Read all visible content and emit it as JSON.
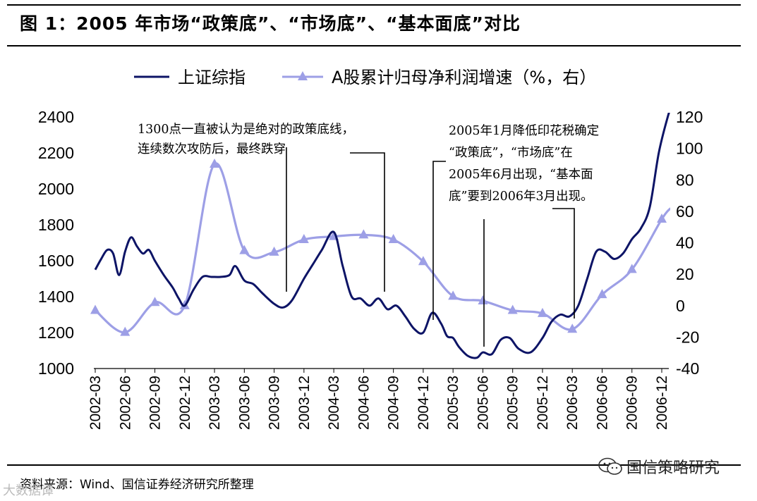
{
  "figure_title": "图 1：2005 年市场“政策底”、“市场底”、“基本面底”对比",
  "source": "资料来源：Wind、国信证券经济研究所整理",
  "watermark": "国信策略研究",
  "watermark2": "大数据谭",
  "colors": {
    "index_line": "#0d1466",
    "profit_line": "#9d9fe6"
  },
  "chart_data": {
    "type": "line",
    "title": "2005 年市场“政策底”、“市场底”、“基本面底”对比",
    "x_ticks": [
      "2002-03",
      "2002-06",
      "2002-09",
      "2002-12",
      "2003-03",
      "2003-06",
      "2003-09",
      "2003-12",
      "2004-03",
      "2004-06",
      "2004-09",
      "2004-12",
      "2005-03",
      "2005-06",
      "2005-09",
      "2005-12",
      "2006-03",
      "2006-06",
      "2006-09",
      "2006-12"
    ],
    "y_left": {
      "min": 1000,
      "max": 2400,
      "ticks": [
        1000,
        1200,
        1400,
        1600,
        1800,
        2000,
        2200,
        2400
      ]
    },
    "y_right": {
      "min": -40,
      "max": 120,
      "ticks": [
        -40,
        -20,
        0,
        20,
        40,
        60,
        80,
        100,
        120
      ]
    },
    "series": [
      {
        "name": "上证综指",
        "axis": "left",
        "x": [
          0,
          0.2,
          0.4,
          0.6,
          0.8,
          1.0,
          1.2,
          1.4,
          1.6,
          1.8,
          2.0,
          2.3,
          2.6,
          2.8,
          3.0,
          3.3,
          3.6,
          3.9,
          4.2,
          4.5,
          4.7,
          5.0,
          5.3,
          5.6,
          6.0,
          6.3,
          6.6,
          7.0,
          7.3,
          7.6,
          8.0,
          8.3,
          8.6,
          8.9,
          9.2,
          9.5,
          9.8,
          10.1,
          10.4,
          10.7,
          11.0,
          11.3,
          11.6,
          11.8,
          12.0,
          12.2,
          12.5,
          12.8,
          13.0,
          13.3,
          13.6,
          13.9,
          14.2,
          14.6,
          15.0,
          15.3,
          15.6,
          15.9,
          16.2,
          16.5,
          16.8,
          17.1,
          17.4,
          17.7,
          18.0,
          18.3,
          18.6,
          18.9,
          19.2,
          19.4
        ],
        "values": [
          1550,
          1610,
          1660,
          1640,
          1520,
          1650,
          1730,
          1680,
          1640,
          1660,
          1600,
          1520,
          1450,
          1390,
          1350,
          1440,
          1510,
          1510,
          1510,
          1520,
          1570,
          1490,
          1470,
          1420,
          1360,
          1340,
          1380,
          1500,
          1580,
          1660,
          1760,
          1570,
          1400,
          1390,
          1350,
          1390,
          1330,
          1350,
          1290,
          1220,
          1200,
          1310,
          1250,
          1180,
          1170,
          1120,
          1070,
          1060,
          1090,
          1080,
          1160,
          1170,
          1110,
          1090,
          1170,
          1260,
          1300,
          1290,
          1350,
          1500,
          1650,
          1650,
          1610,
          1640,
          1720,
          1780,
          1900,
          2200,
          2400,
          2500
        ]
      },
      {
        "name": "A股累计归母净利润增速（%，右）",
        "axis": "right",
        "marker": "triangle",
        "x": [
          0,
          1,
          2,
          3,
          4,
          5,
          6,
          7,
          8,
          9,
          10,
          11,
          12,
          13,
          14,
          15,
          16,
          17,
          18,
          19
        ],
        "values": [
          -3,
          -17,
          2,
          0,
          90,
          35,
          34,
          42,
          44,
          45,
          42,
          28,
          6,
          3,
          -3,
          -5,
          -15,
          7,
          23,
          55
        ],
        "curve_extension": 62
      }
    ],
    "legend": [
      "上证综指",
      "A股累计归母净利润增速（%，右）"
    ],
    "annotations": [
      {
        "lines": [
          "1300点一直被认为是绝对的政策底线，",
          "连续数次攻防后，最终跌穿"
        ]
      },
      {
        "lines": [
          "2005年1月降低印花税确定",
          "“政策底”，“市场底”在",
          "2005年6月出现，“基本面",
          "底”要到2006年3月出现。"
        ]
      }
    ]
  }
}
